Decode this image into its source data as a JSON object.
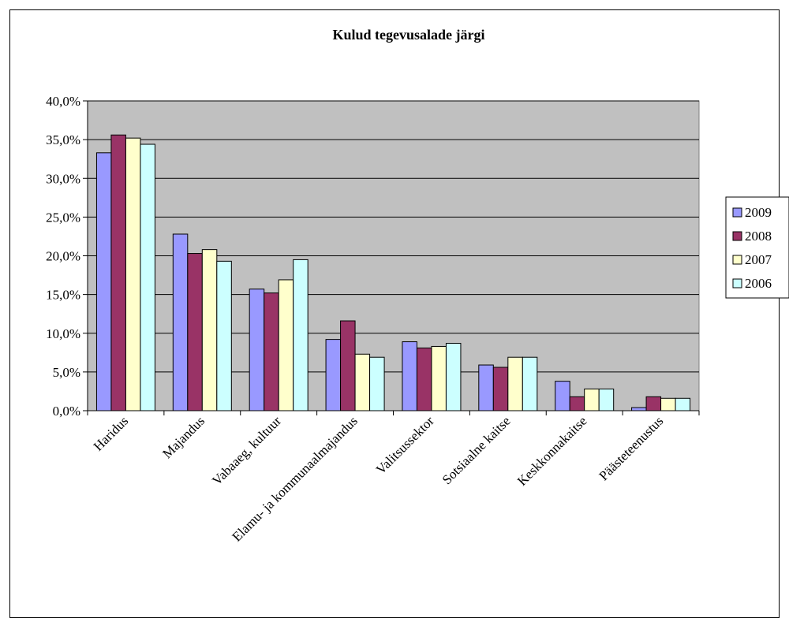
{
  "chart_data": {
    "type": "bar",
    "title": "Kulud tegevusalade järgi",
    "xlabel": "",
    "ylabel": "",
    "ylim": [
      0,
      40
    ],
    "y_ticks": [
      "0,0%",
      "5,0%",
      "10,0%",
      "15,0%",
      "20,0%",
      "25,0%",
      "30,0%",
      "35,0%",
      "40,0%"
    ],
    "grid": true,
    "legend_position": "right",
    "categories": [
      "Haridus",
      "Majandus",
      "Vabaaeg, kultuur",
      "Elamu- ja kommunaalmajandus",
      "Valitsussektor",
      "Sotsiaalne kaitse",
      "Keskkonnakaitse",
      "Päästeteenustus"
    ],
    "series": [
      {
        "name": "2009",
        "color": "#9999ff",
        "values": [
          33.3,
          22.8,
          15.7,
          9.2,
          8.9,
          5.9,
          3.8,
          0.4
        ]
      },
      {
        "name": "2008",
        "color": "#993366",
        "values": [
          35.6,
          20.3,
          15.2,
          11.6,
          8.1,
          5.6,
          1.8,
          1.8
        ]
      },
      {
        "name": "2007",
        "color": "#ffffcc",
        "values": [
          35.2,
          20.8,
          16.9,
          7.3,
          8.3,
          6.9,
          2.8,
          1.6
        ]
      },
      {
        "name": "2006",
        "color": "#ccffff",
        "values": [
          34.4,
          19.3,
          19.5,
          6.9,
          8.7,
          6.9,
          2.8,
          1.6
        ]
      }
    ],
    "colors": {
      "plot_background": "#c0c0c0",
      "grid": "#000000"
    }
  }
}
